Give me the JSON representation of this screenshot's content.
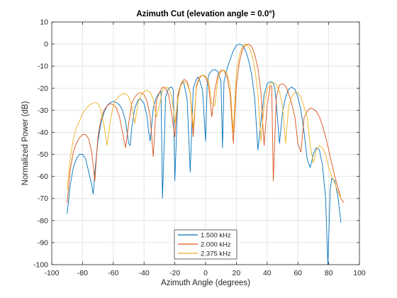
{
  "chart_data": {
    "type": "line",
    "title": "Azimuth Cut (elevation angle = 0.0°)",
    "xlabel": "Azimuth Angle (degrees)",
    "ylabel": "Normalized Power (dB)",
    "xlim": [
      -100,
      100
    ],
    "ylim": [
      -100,
      10
    ],
    "xticks": [
      -100,
      -80,
      -60,
      -40,
      -20,
      0,
      20,
      40,
      60,
      80,
      100
    ],
    "yticks": [
      -100,
      -90,
      -80,
      -70,
      -60,
      -50,
      -40,
      -30,
      -20,
      -10,
      0,
      10
    ],
    "grid": true,
    "legend_position": "bottom-center",
    "series": [
      {
        "name": "1.500 kHz",
        "color": "#0072BD",
        "x": [
          -90,
          -88,
          -86,
          -84,
          -82,
          -80,
          -78,
          -76,
          -74,
          -73,
          -72,
          -70,
          -68,
          -66,
          -64,
          -62,
          -60,
          -58,
          -56,
          -54,
          -52,
          -50,
          -49,
          -48,
          -46,
          -44,
          -43,
          -42,
          -40,
          -38,
          -37,
          -36,
          -34,
          -32,
          -30,
          -29,
          -28,
          -26,
          -24,
          -22,
          -21,
          -20,
          -18,
          -16,
          -15,
          -14,
          -12,
          -10,
          -8,
          -6,
          -5,
          -4,
          -2,
          0,
          1,
          2,
          4,
          6,
          8,
          10,
          11,
          12,
          14,
          16,
          18,
          20,
          22,
          24,
          26,
          28,
          30,
          32,
          34,
          36,
          38,
          40,
          42,
          44,
          45,
          46,
          48,
          50,
          52,
          54,
          56,
          58,
          60,
          62,
          64,
          66,
          68,
          70,
          72,
          74,
          76,
          78,
          79.5,
          81,
          82,
          84,
          86,
          88
        ],
        "values": [
          -77,
          -64,
          -56,
          -52,
          -50,
          -50,
          -52,
          -58,
          -64,
          -68,
          -58,
          -44,
          -36,
          -31,
          -28,
          -26.5,
          -26,
          -26.5,
          -27.5,
          -30,
          -35,
          -45,
          -46,
          -38,
          -29,
          -25.5,
          -24.8,
          -25,
          -27,
          -33,
          -40,
          -44,
          -29,
          -24,
          -22,
          -21.5,
          -70,
          -24,
          -20,
          -19.5,
          -21,
          -62,
          -24,
          -18,
          -17,
          -18,
          -25,
          -58,
          -20,
          -16,
          -15,
          -16,
          -21,
          -44,
          -19,
          -14,
          -12,
          -11.5,
          -12.5,
          -17,
          -47,
          -17,
          -11,
          -7,
          -3,
          -0.6,
          0,
          -0.6,
          -3,
          -7.5,
          -14,
          -25,
          -48,
          -35,
          -23,
          -18,
          -17,
          -17.5,
          -20,
          -27,
          -45,
          -31,
          -24,
          -20.5,
          -19.5,
          -20.5,
          -24,
          -30,
          -40,
          -52,
          -56,
          -50,
          -47,
          -48,
          -55,
          -70,
          -100,
          -66,
          -61,
          -62,
          -69,
          -81
        ]
      },
      {
        "name": "2.000 kHz",
        "color": "#D95319",
        "x": [
          -90,
          -88,
          -86,
          -84,
          -82,
          -80,
          -78,
          -76,
          -74,
          -72,
          -70,
          -68,
          -66,
          -64,
          -62,
          -60,
          -58,
          -56,
          -54,
          -52,
          -50,
          -48,
          -46,
          -44,
          -42,
          -40,
          -38,
          -36,
          -34,
          -32,
          -30,
          -28,
          -26,
          -24,
          -22,
          -20,
          -18,
          -16,
          -14,
          -12,
          -10,
          -8,
          -6,
          -4,
          -2,
          0,
          2,
          4,
          6,
          8,
          10,
          12,
          14,
          16,
          18,
          20,
          22,
          24,
          26,
          28,
          30,
          32,
          34,
          36,
          38,
          40,
          42,
          43,
          44,
          46,
          48,
          50,
          52,
          54,
          56,
          58,
          60,
          62,
          64,
          66,
          68,
          70,
          72,
          74,
          76,
          78,
          80,
          82,
          84,
          86,
          88,
          90
        ],
        "values": [
          -72,
          -57,
          -49,
          -45,
          -42.5,
          -41,
          -41,
          -43,
          -49,
          -62,
          -42,
          -34,
          -30,
          -28,
          -27,
          -27.5,
          -29,
          -33,
          -40,
          -47,
          -36,
          -27,
          -24,
          -22.5,
          -22,
          -23,
          -26,
          -33,
          -51,
          -26,
          -22,
          -19.5,
          -20,
          -23,
          -32,
          -42,
          -23,
          -18,
          -16,
          -17,
          -22,
          -42,
          -19,
          -15,
          -14,
          -15,
          -19,
          -33,
          -21,
          -14,
          -11.8,
          -12,
          -15,
          -23,
          -45,
          -19,
          -8,
          -2.5,
          -0.3,
          0,
          -1.2,
          -4.8,
          -11,
          -22,
          -46,
          -28,
          -19,
          -19,
          -62,
          -24,
          -18.5,
          -18,
          -19,
          -22.5,
          -27,
          -33,
          -45,
          -49,
          -33.5,
          -30.5,
          -29,
          -29.5,
          -30.5,
          -33,
          -37,
          -42,
          -48,
          -54,
          -60,
          -65,
          -70,
          -72
        ]
      },
      {
        "name": "2.375 kHz",
        "color": "#EDB120",
        "x": [
          -90,
          -88,
          -86,
          -84,
          -82,
          -80,
          -78,
          -76,
          -74,
          -72,
          -70,
          -68,
          -66,
          -64,
          -62,
          -60,
          -58,
          -56,
          -54,
          -52,
          -50,
          -48,
          -46,
          -44,
          -42,
          -40,
          -38,
          -36,
          -34,
          -32,
          -30,
          -28,
          -26,
          -24,
          -22,
          -20,
          -18,
          -16,
          -14,
          -12,
          -10,
          -8,
          -6,
          -4,
          -2,
          0,
          2,
          4,
          6,
          8,
          10,
          12,
          14,
          16,
          18,
          20,
          22,
          24,
          26,
          28,
          30,
          32,
          34,
          36,
          38,
          40,
          42,
          44,
          46,
          48,
          50,
          52,
          54,
          56,
          58,
          60,
          62,
          64,
          66,
          68,
          70,
          72,
          74,
          76,
          78,
          80,
          82,
          84,
          86,
          88
        ],
        "values": [
          -66,
          -52,
          -43,
          -38,
          -35,
          -31.5,
          -29.5,
          -28,
          -27,
          -26.5,
          -27,
          -30,
          -37,
          -46,
          -35,
          -28,
          -25,
          -23.5,
          -22.5,
          -22.5,
          -24,
          -28,
          -36,
          -27,
          -23,
          -21.5,
          -21,
          -22,
          -25,
          -33,
          -28,
          -21,
          -19.5,
          -20,
          -23.5,
          -36,
          -25,
          -18.5,
          -17,
          -18,
          -22,
          -38,
          -20,
          -15.5,
          -14,
          -14.5,
          -17,
          -27,
          -28,
          -16,
          -12.5,
          -11.8,
          -13.5,
          -19,
          -40,
          -13,
          -5.2,
          -1,
          0,
          -1.2,
          -4.7,
          -11,
          -22,
          -44,
          -28,
          -20.5,
          -18,
          -17.5,
          -18.5,
          -21.5,
          -28,
          -45,
          -28,
          -24,
          -22,
          -22,
          -24,
          -28.5,
          -33,
          -46,
          -54,
          -48,
          -46,
          -47,
          -50,
          -56,
          -60,
          -63,
          -67,
          -70
        ]
      }
    ]
  }
}
